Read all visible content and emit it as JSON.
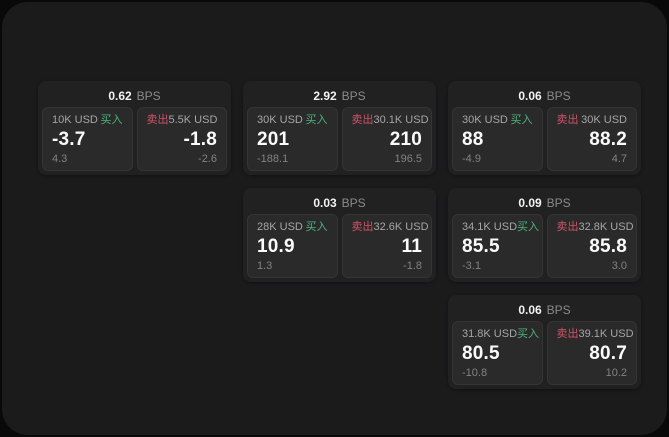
{
  "labels": {
    "bps_unit": "BPS",
    "buy": "买入",
    "sell": "卖出"
  },
  "colors": {
    "buy": "#4db37c",
    "sell": "#d05266",
    "panel_bg": "#1b1b1c",
    "card_bg": "#212122",
    "tile_bg": "#2a2a2b"
  },
  "cards": [
    {
      "bps": "0.62",
      "buy": {
        "amount": "10K USD",
        "price": "-3.7",
        "delta": "4.3"
      },
      "sell": {
        "amount": "5.5K USD",
        "price": "-1.8",
        "delta": "-2.6"
      }
    },
    {
      "bps": "2.92",
      "buy": {
        "amount": "30K USD",
        "price": "201",
        "delta": "-188.1"
      },
      "sell": {
        "amount": "30.1K USD",
        "price": "210",
        "delta": "196.5"
      }
    },
    {
      "bps": "0.06",
      "buy": {
        "amount": "30K USD",
        "price": "88",
        "delta": "-4.9"
      },
      "sell": {
        "amount": "30K USD",
        "price": "88.2",
        "delta": "4.7"
      }
    },
    {
      "bps": "0.03",
      "buy": {
        "amount": "28K USD",
        "price": "10.9",
        "delta": "1.3"
      },
      "sell": {
        "amount": "32.6K USD",
        "price": "11",
        "delta": "-1.8"
      }
    },
    {
      "bps": "0.09",
      "buy": {
        "amount": "34.1K USD",
        "price": "85.5",
        "delta": "-3.1"
      },
      "sell": {
        "amount": "32.8K USD",
        "price": "85.8",
        "delta": "3.0"
      }
    },
    {
      "bps": "0.06",
      "buy": {
        "amount": "31.8K USD",
        "price": "80.5",
        "delta": "-10.8"
      },
      "sell": {
        "amount": "39.1K USD",
        "price": "80.7",
        "delta": "10.2"
      }
    }
  ]
}
